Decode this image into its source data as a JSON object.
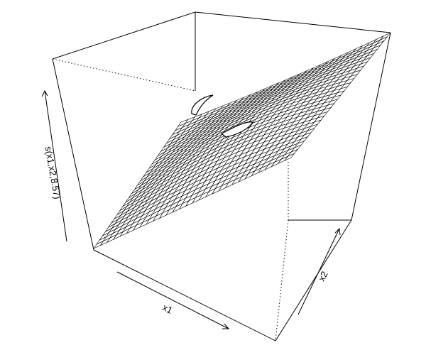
{
  "chart_data": {
    "type": "surface",
    "zlabel": "s(x1,x2,8.57)",
    "xlabel": "x1",
    "ylabel": "x2",
    "grid_resolution": 30,
    "colors": {
      "box": "#000000",
      "mesh": "#000000",
      "surface_fill": "#ffffff",
      "background": "#ffffff"
    }
  }
}
